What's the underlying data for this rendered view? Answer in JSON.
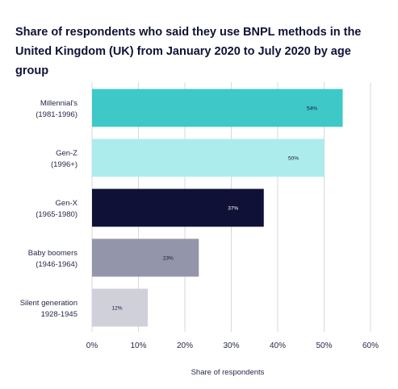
{
  "chart_data": {
    "type": "bar",
    "orientation": "horizontal",
    "title": "Share of respondents who said they use BNPL methods in the United Kingdom (UK) from January 2020 to July 2020 by age group",
    "xlabel": "Share of respondents",
    "ylabel": "",
    "categories": [
      [
        "Millennial's",
        "(1981-1996)"
      ],
      [
        "Gen-Z",
        "(1996+)"
      ],
      [
        "Gen-X",
        "(1965-1980)"
      ],
      [
        "Baby boomers",
        "(1946-1964)"
      ],
      [
        "Silent generation",
        "1928-1945"
      ]
    ],
    "values": [
      54,
      50,
      37,
      23,
      12
    ],
    "data_labels": [
      "54%",
      "50%",
      "37%",
      "23%",
      "12%"
    ],
    "bar_colors": [
      "#3ec8c8",
      "#acecec",
      "#0f1136",
      "#9396aa",
      "#cfd0da"
    ],
    "label_colors": [
      "#101235",
      "#101235",
      "#ffffff",
      "#101235",
      "#101235"
    ],
    "xlim": [
      0,
      60
    ],
    "xticks": [
      0,
      10,
      20,
      30,
      40,
      50,
      60
    ],
    "xtick_labels": [
      "0%",
      "10%",
      "20%",
      "30%",
      "40%",
      "50%",
      "60%"
    ],
    "grid": "vertical",
    "grid_color": "#d7d7e0",
    "legend": "none"
  }
}
